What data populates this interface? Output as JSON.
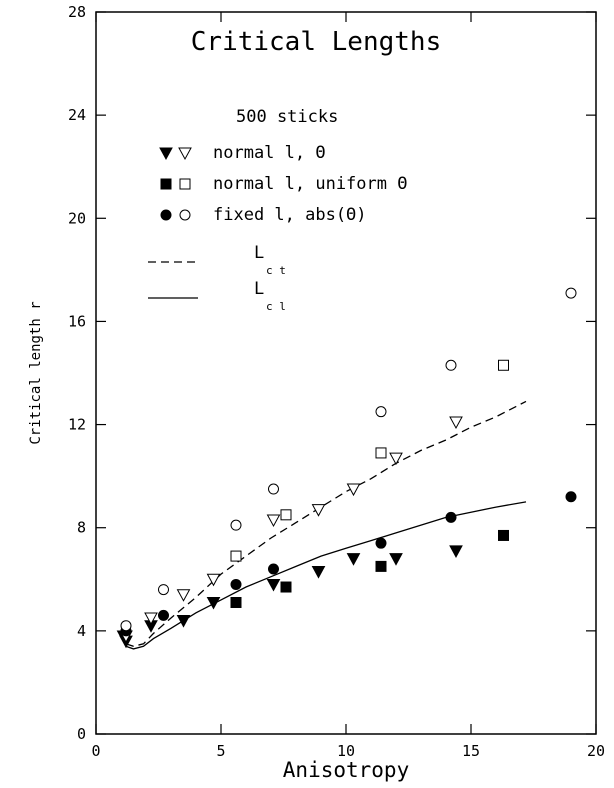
{
  "chart_data": {
    "type": "scatter",
    "title": "Critical Lengths",
    "xlabel": "Anisotropy",
    "ylabel": "Critical length r",
    "xlim": [
      0,
      20
    ],
    "ylim": [
      0,
      28
    ],
    "xticks": [
      0,
      5,
      10,
      15,
      20
    ],
    "yticks": [
      0,
      4,
      8,
      12,
      16,
      20,
      24,
      28
    ],
    "grid": false,
    "legend": {
      "placement": "top-left",
      "header": "500 sticks",
      "entries": [
        {
          "label": "normal l, Θ",
          "markers": [
            "filled-triangle-down",
            "open-triangle-down"
          ]
        },
        {
          "label": "normal l, uniform Θ",
          "markers": [
            "filled-square",
            "open-square"
          ]
        },
        {
          "label": "fixed l, abs(Θ)",
          "markers": [
            "filled-circle",
            "open-circle"
          ]
        },
        {
          "label": "L",
          "sub": "ct",
          "line": "dashed"
        },
        {
          "label": "L",
          "sub": "cl",
          "line": "solid"
        }
      ]
    },
    "series": [
      {
        "marker": "filled-triangle-down",
        "x": [
          1.1,
          1.2,
          2.2,
          3.5,
          4.7,
          7.1,
          8.9,
          10.3,
          12.0,
          14.4
        ],
        "y": [
          3.8,
          3.6,
          4.2,
          4.4,
          5.1,
          5.8,
          6.3,
          6.8,
          6.8,
          7.1
        ]
      },
      {
        "marker": "open-triangle-down",
        "x": [
          1.2,
          2.2,
          3.5,
          4.7,
          7.1,
          8.9,
          10.3,
          12.0,
          14.4
        ],
        "y": [
          3.8,
          4.5,
          5.4,
          6.0,
          8.3,
          8.7,
          9.5,
          10.7,
          12.1
        ]
      },
      {
        "marker": "filled-square",
        "x": [
          5.6,
          7.6,
          11.4,
          16.3
        ],
        "y": [
          5.1,
          5.7,
          6.5,
          7.7
        ]
      },
      {
        "marker": "open-square",
        "x": [
          5.6,
          7.6,
          11.4,
          16.3
        ],
        "y": [
          6.9,
          8.5,
          10.9,
          14.3
        ]
      },
      {
        "marker": "filled-circle",
        "x": [
          1.2,
          2.7,
          5.6,
          7.1,
          11.4,
          14.2,
          19.0
        ],
        "y": [
          4.0,
          4.6,
          5.8,
          6.4,
          7.4,
          8.4,
          9.2
        ]
      },
      {
        "marker": "open-circle",
        "x": [
          1.2,
          2.7,
          5.6,
          7.1,
          11.4,
          14.2,
          19.0
        ],
        "y": [
          4.2,
          5.6,
          8.1,
          9.5,
          12.5,
          14.3,
          17.1
        ]
      },
      {
        "line": "dashed",
        "x": [
          1.2,
          1.5,
          1.9,
          2.3,
          3.0,
          4.0,
          5.0,
          6.0,
          7.0,
          8.0,
          9.0,
          10.0,
          11.0,
          12.0,
          13.0,
          14.0,
          15.0,
          16.0,
          17.2
        ],
        "y": [
          3.5,
          3.4,
          3.5,
          3.9,
          4.5,
          5.3,
          6.2,
          6.9,
          7.6,
          8.2,
          8.8,
          9.4,
          9.9,
          10.5,
          11.0,
          11.4,
          11.9,
          12.3,
          12.9
        ]
      },
      {
        "line": "solid",
        "x": [
          1.2,
          1.5,
          1.9,
          2.3,
          3.0,
          4.0,
          5.0,
          6.0,
          7.0,
          8.0,
          9.0,
          10.0,
          11.0,
          12.0,
          13.0,
          14.0,
          15.0,
          16.0,
          17.2
        ],
        "y": [
          3.4,
          3.3,
          3.4,
          3.7,
          4.1,
          4.7,
          5.2,
          5.7,
          6.1,
          6.5,
          6.9,
          7.2,
          7.5,
          7.8,
          8.1,
          8.4,
          8.6,
          8.8,
          9.0
        ]
      }
    ]
  }
}
